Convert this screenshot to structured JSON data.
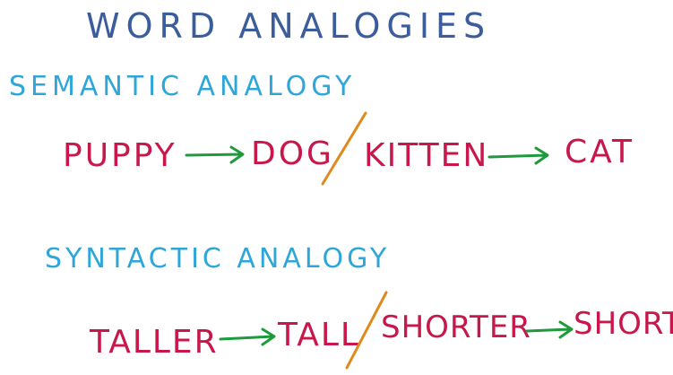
{
  "title": "WORD ANALOGIES",
  "semantic": {
    "heading": "SEMANTIC ANALOGY",
    "words": [
      "PUPPY",
      "DOG",
      "KITTEN",
      "CAT"
    ]
  },
  "syntactic": {
    "heading": "SYNTACTIC ANALOGY",
    "words": [
      "TALLER",
      "TALL",
      "SHORTER",
      "SHORT"
    ]
  },
  "colors": {
    "title": "#3b5d9c",
    "heading": "#2ea6d8",
    "word": "#c8174a",
    "arrow": "#1e9a3c",
    "slash": "#e08a1e"
  }
}
